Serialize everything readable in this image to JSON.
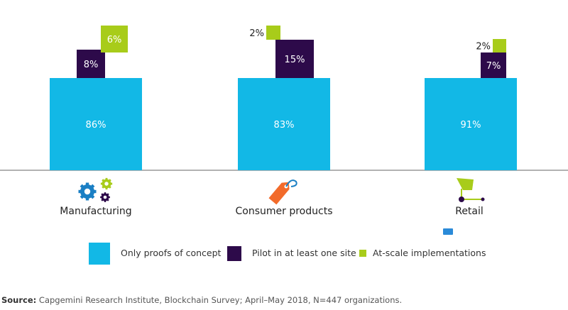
{
  "chart_data": {
    "type": "bar",
    "categories": [
      "Manufacturing",
      "Consumer products",
      "Retail"
    ],
    "series": [
      {
        "name": "Only proofs of concept",
        "color": "#12b8e6",
        "values": [
          86,
          83,
          91
        ]
      },
      {
        "name": "Pilot in at least one site",
        "color": "#2d0a4a",
        "values": [
          8,
          15,
          7
        ]
      },
      {
        "name": "At-scale implementations",
        "color": "#a8cc1a",
        "values": [
          6,
          2,
          2
        ]
      }
    ],
    "value_labels": [
      [
        "86%",
        "83%",
        "91%"
      ],
      [
        "8%",
        "15%",
        "7%"
      ],
      [
        "6%",
        "2%",
        "2%"
      ]
    ],
    "category_icons": [
      "gears-icon",
      "price-tag-icon",
      "shopping-cart-icon"
    ],
    "legend_position": "bottom",
    "grid": false
  },
  "source": {
    "label": "Source:",
    "text": " Capgemini Research Institute, Blockchain Survey; April–May 2018, N=447 organizations."
  }
}
